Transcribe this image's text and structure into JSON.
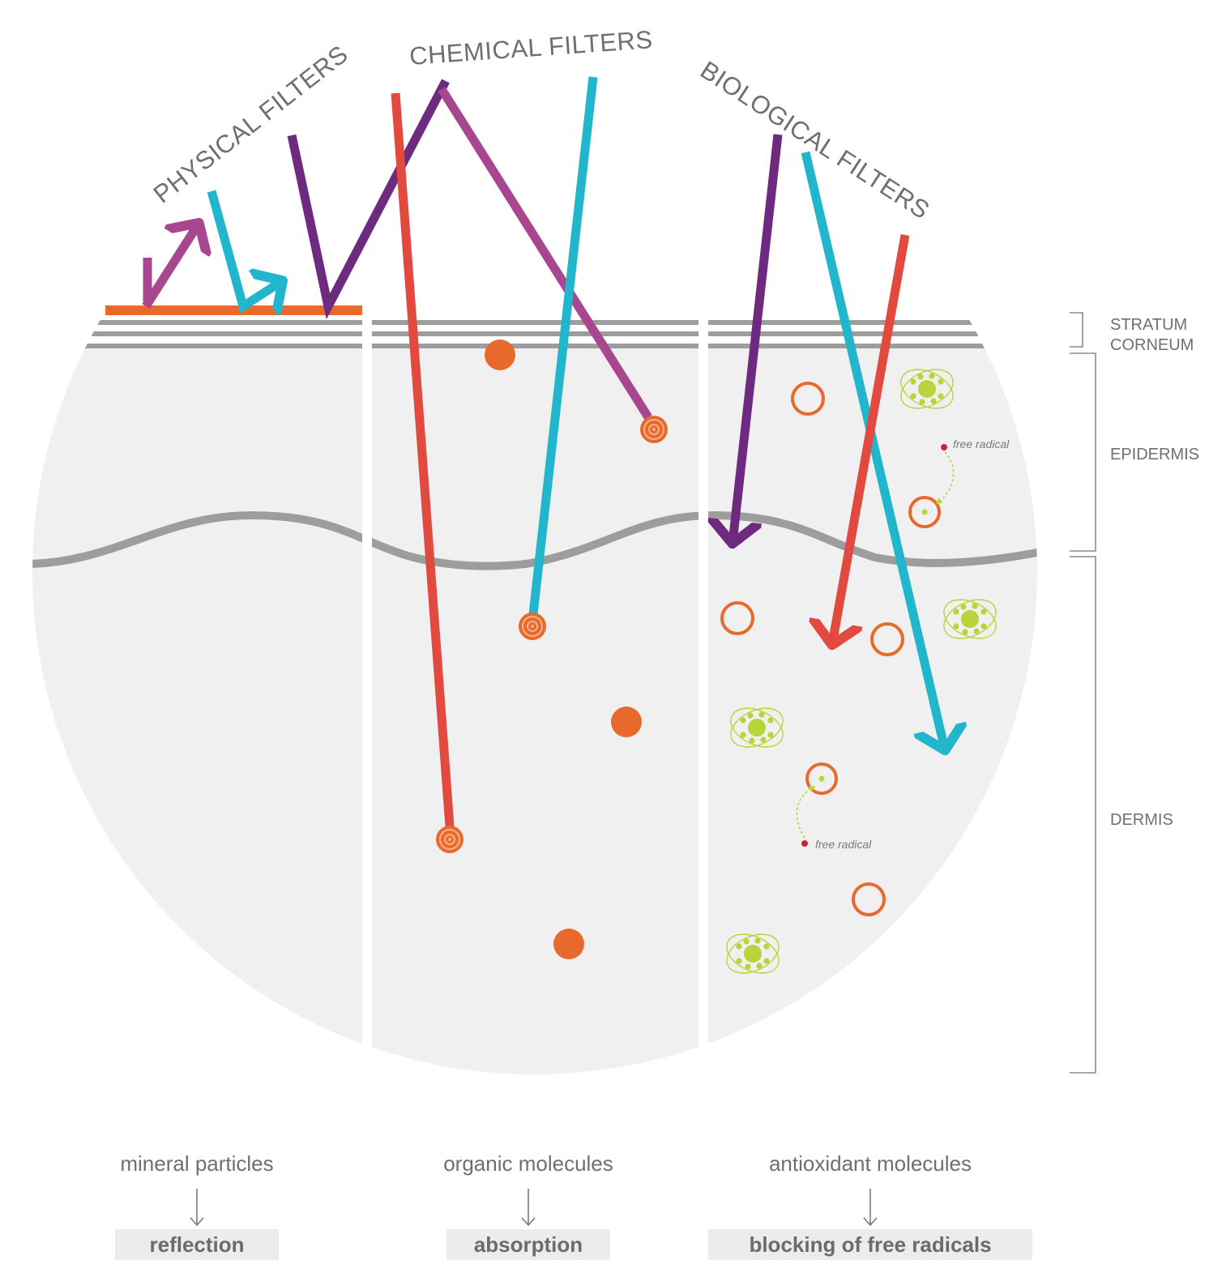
{
  "filters": {
    "physical": "PHYSICAL FILTERS",
    "chemical": "CHEMICAL FILTERS",
    "biological": "BIOLOGICAL FILTERS"
  },
  "layers": {
    "stratum_line1": "STRATUM",
    "stratum_line2": "CORNEUM",
    "epidermis": "EPIDERMIS",
    "dermis": "DERMIS"
  },
  "free_radical_label": "free radical",
  "mechanisms": [
    {
      "particles": "mineral particles",
      "result": "reflection"
    },
    {
      "particles": "organic molecules",
      "result": "absorption"
    },
    {
      "particles": "antioxidant molecules",
      "result": "blocking of free radicals"
    }
  ],
  "colors": {
    "skin": "#f0f0f0",
    "layer_line": "#9d9d9d",
    "uva_purple": "#6e2a7e",
    "uvb_magenta": "#a8478f",
    "blue_light": "#21b6cc",
    "infrared_red": "#e2493f",
    "particle_orange": "#e8692c",
    "antioxidant_green": "#b7d43a",
    "free_radical_red": "#cc2233"
  }
}
